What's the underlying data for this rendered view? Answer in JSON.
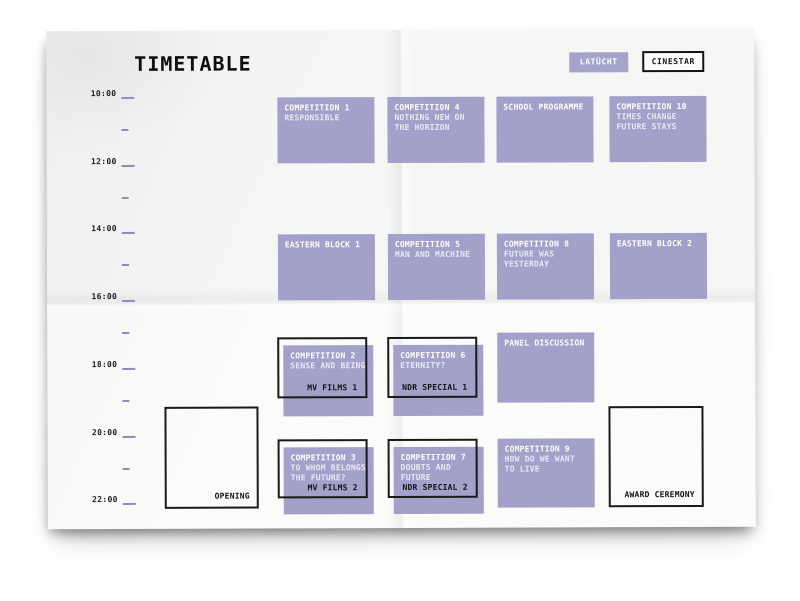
{
  "title": "TIMETABLE",
  "colors": {
    "accent": "#a3a0ca",
    "tick": "#8f8bbd",
    "ink": "#141414"
  },
  "venues": [
    {
      "label": "LATÜCHT",
      "style": "filled"
    },
    {
      "label": "CINESTAR",
      "style": "outline"
    }
  ],
  "time_axis": {
    "labels": [
      "10:00",
      "12:00",
      "14:00",
      "16:00",
      "18:00",
      "20:00",
      "22:00"
    ]
  },
  "events": [
    {
      "row": 0,
      "col": 0,
      "lines": [
        "COMPETITION 1",
        "RESPONSIBLE"
      ]
    },
    {
      "row": 0,
      "col": 1,
      "lines": [
        "COMPETITION 4",
        "NOTHING NEW ON",
        "THE HORIZON"
      ]
    },
    {
      "row": 0,
      "col": 2,
      "lines": [
        "SCHOOL PROGRAMME"
      ]
    },
    {
      "row": 0,
      "col": 3,
      "lines": [
        "COMPETITION 10",
        "TIMES CHANGE",
        "FUTURE STAYS"
      ]
    },
    {
      "row": 1,
      "col": 0,
      "lines": [
        "EASTERN BLOCK 1"
      ]
    },
    {
      "row": 1,
      "col": 1,
      "lines": [
        "COMPETITION 5",
        "MAN AND MACHINE"
      ]
    },
    {
      "row": 1,
      "col": 2,
      "lines": [
        "COMPETITION 8",
        "FUTURE WAS",
        "YESTERDAY"
      ]
    },
    {
      "row": 1,
      "col": 3,
      "lines": [
        "EASTERN BLOCK 2"
      ]
    },
    {
      "row": 2,
      "col": 0,
      "lines": [
        "COMPETITION 2",
        "SENSE AND BEING"
      ],
      "frame_label": "MV FILMS 1"
    },
    {
      "row": 2,
      "col": 1,
      "lines": [
        "COMPETITION 6",
        "ETERNITY?"
      ],
      "frame_label": "NDR SPECIAL 1"
    },
    {
      "row": 2,
      "col": 2,
      "lines": [
        "PANEL DISCUSSION"
      ]
    },
    {
      "row": 3,
      "col": 0,
      "lines": [
        "COMPETITION 3",
        "TO WHOM BELONGS",
        "THE FUTURE?"
      ],
      "frame_label": "MV FILMS 2"
    },
    {
      "row": 3,
      "col": 1,
      "lines": [
        "COMPETITION 7",
        "DOUBTS AND",
        "FUTURE"
      ],
      "frame_label": "NDR SPECIAL 2"
    },
    {
      "row": 3,
      "col": 2,
      "lines": [
        "COMPETITION 9",
        "HOW DO WE WANT",
        "TO LIVE"
      ]
    }
  ],
  "ceremonies": [
    {
      "label": "OPENING",
      "position": "left"
    },
    {
      "label": "AWARD CEREMONY",
      "position": "right"
    }
  ]
}
